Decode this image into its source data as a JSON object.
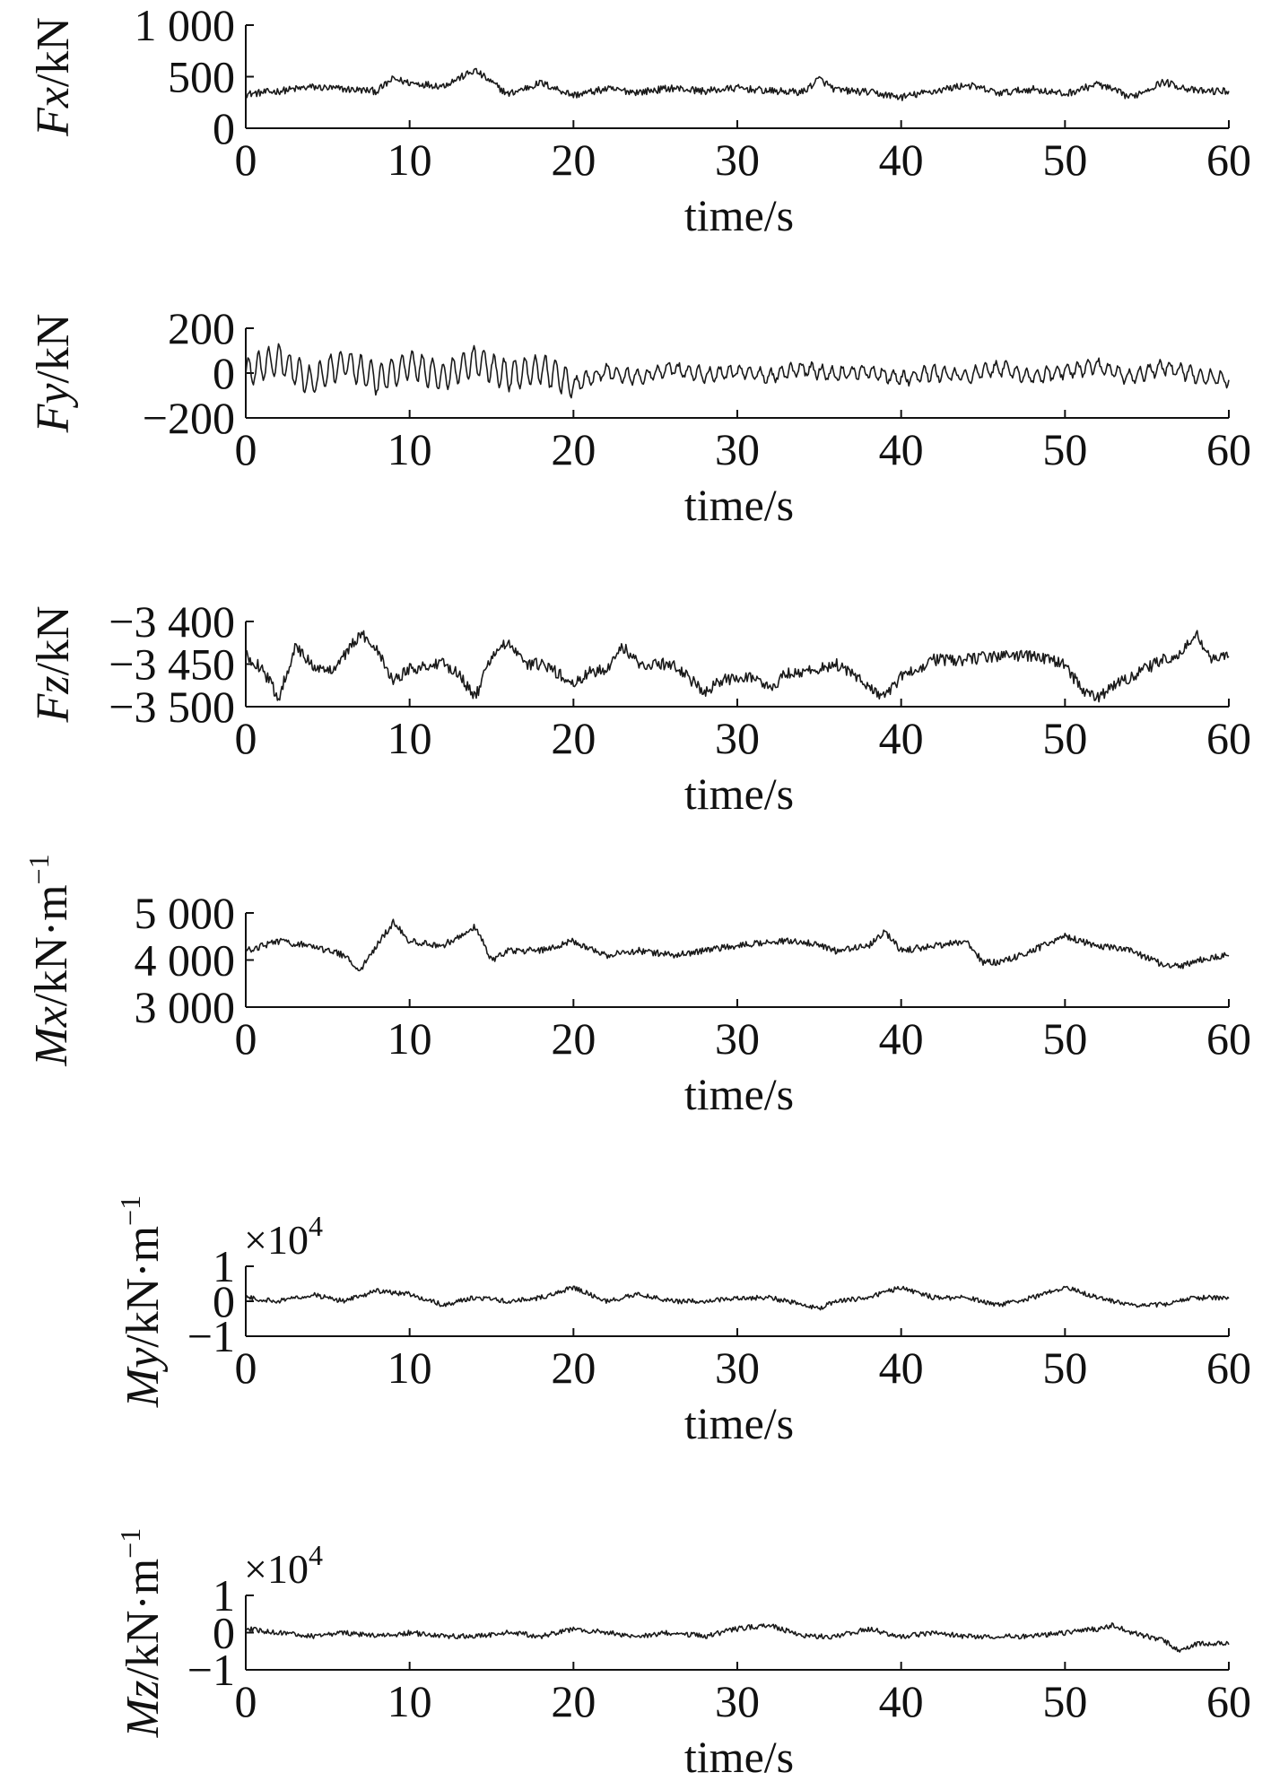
{
  "chart_data": [
    {
      "type": "line",
      "ylabel_var": "Fx",
      "ylabel_unit": "/kN",
      "xlabel": "time/s",
      "xlim": [
        0,
        60
      ],
      "x_ticks": [
        "0",
        "10",
        "20",
        "30",
        "40",
        "50",
        "60"
      ],
      "ylim": [
        0,
        1000
      ],
      "y_ticks": [
        {
          "value": 0,
          "label": "0"
        },
        {
          "value": 500,
          "label": "500"
        },
        {
          "value": 1000,
          "label": "1 000"
        }
      ],
      "multiplier": "",
      "line_color": "#1a1a1a",
      "x": [
        0,
        2,
        4,
        6,
        8,
        9,
        10,
        12,
        14,
        16,
        18,
        20,
        22,
        24,
        26,
        28,
        30,
        32,
        34,
        35,
        36,
        38,
        40,
        42,
        44,
        46,
        48,
        50,
        52,
        54,
        56,
        58,
        60
      ],
      "y": [
        330,
        360,
        400,
        380,
        360,
        480,
        440,
        410,
        560,
        330,
        440,
        320,
        380,
        350,
        390,
        360,
        390,
        360,
        350,
        480,
        370,
        350,
        300,
        360,
        420,
        340,
        380,
        330,
        430,
        300,
        450,
        360,
        360
      ]
    },
    {
      "type": "line",
      "ylabel_var": "Fy",
      "ylabel_unit": "/kN",
      "xlabel": "time/s",
      "xlim": [
        0,
        60
      ],
      "x_ticks": [
        "0",
        "10",
        "20",
        "30",
        "40",
        "50",
        "60"
      ],
      "ylim": [
        -200,
        200
      ],
      "y_ticks": [
        {
          "value": -200,
          "label": "−200"
        },
        {
          "value": 0,
          "label": "0"
        },
        {
          "value": 200,
          "label": "200"
        }
      ],
      "multiplier": "",
      "line_color": "#1a1a1a",
      "x": [
        0,
        2,
        4,
        6,
        8,
        10,
        12,
        14,
        16,
        18,
        20,
        22,
        24,
        26,
        28,
        30,
        32,
        34,
        36,
        38,
        40,
        42,
        44,
        46,
        48,
        50,
        52,
        54,
        56,
        58,
        60
      ],
      "y": [
        0,
        60,
        -40,
        50,
        -30,
        40,
        -20,
        55,
        -10,
        20,
        -50,
        10,
        -20,
        20,
        -10,
        10,
        -15,
        20,
        -5,
        10,
        -25,
        0,
        -15,
        25,
        -20,
        10,
        30,
        -20,
        30,
        -10,
        -30
      ]
    },
    {
      "type": "line",
      "ylabel_var": "Fz",
      "ylabel_unit": "/kN",
      "xlabel": "time/s",
      "xlim": [
        0,
        60
      ],
      "x_ticks": [
        "0",
        "10",
        "20",
        "30",
        "40",
        "50",
        "60"
      ],
      "ylim": [
        -3500,
        -3400
      ],
      "y_ticks": [
        {
          "value": -3500,
          "label": "−3 500"
        },
        {
          "value": -3450,
          "label": "−3 450"
        },
        {
          "value": -3400,
          "label": "−3 400"
        }
      ],
      "multiplier": "",
      "line_color": "#1a1a1a",
      "x": [
        0,
        1,
        2,
        3,
        4,
        5,
        6,
        7,
        8,
        9,
        10,
        12,
        13,
        14,
        15,
        16,
        17,
        18,
        19,
        20,
        21,
        22,
        23,
        24,
        26,
        27,
        28,
        29,
        30,
        31,
        32,
        33,
        34,
        36,
        38,
        39,
        40,
        42,
        44,
        46,
        48,
        50,
        51,
        52,
        53,
        54,
        56,
        57,
        58,
        59,
        60
      ],
      "y": [
        -3440,
        -3455,
        -3490,
        -3430,
        -3450,
        -3460,
        -3440,
        -3415,
        -3430,
        -3470,
        -3455,
        -3450,
        -3460,
        -3490,
        -3440,
        -3425,
        -3450,
        -3450,
        -3460,
        -3475,
        -3460,
        -3455,
        -3430,
        -3450,
        -3450,
        -3465,
        -3485,
        -3470,
        -3465,
        -3465,
        -3480,
        -3460,
        -3460,
        -3450,
        -3475,
        -3490,
        -3465,
        -3445,
        -3445,
        -3440,
        -3440,
        -3450,
        -3480,
        -3490,
        -3475,
        -3465,
        -3445,
        -3440,
        -3415,
        -3445,
        -3440
      ]
    },
    {
      "type": "line",
      "ylabel_var": "Mx",
      "ylabel_unit": "/kN·m",
      "ylabel_sup": "−1",
      "xlabel": "time/s",
      "xlim": [
        0,
        60
      ],
      "x_ticks": [
        "0",
        "10",
        "20",
        "30",
        "40",
        "50",
        "60"
      ],
      "ylim": [
        3000,
        5000
      ],
      "y_ticks": [
        {
          "value": 3000,
          "label": "3 000"
        },
        {
          "value": 4000,
          "label": "4 000"
        },
        {
          "value": 5000,
          "label": "5 000"
        }
      ],
      "multiplier": "",
      "line_color": "#1a1a1a",
      "x": [
        0,
        2,
        4,
        6,
        7,
        8,
        9,
        10,
        12,
        14,
        15,
        16,
        18,
        20,
        22,
        24,
        26,
        28,
        30,
        32,
        34,
        36,
        38,
        39,
        40,
        42,
        44,
        45,
        46,
        48,
        50,
        52,
        54,
        56,
        57,
        58,
        60
      ],
      "y": [
        4200,
        4400,
        4300,
        4100,
        3800,
        4300,
        4800,
        4400,
        4300,
        4700,
        4000,
        4200,
        4200,
        4400,
        4100,
        4200,
        4100,
        4200,
        4300,
        4400,
        4400,
        4200,
        4300,
        4600,
        4200,
        4300,
        4400,
        3950,
        3950,
        4200,
        4500,
        4300,
        4200,
        3900,
        3850,
        4000,
        4100
      ]
    },
    {
      "type": "line",
      "ylabel_var": "My",
      "ylabel_unit": "/kN·m",
      "ylabel_sup": "−1",
      "xlabel": "time/s",
      "xlim": [
        0,
        60
      ],
      "x_ticks": [
        "0",
        "10",
        "20",
        "30",
        "40",
        "50",
        "60"
      ],
      "ylim": [
        -1,
        1
      ],
      "y_ticks": [
        {
          "value": -1,
          "label": "−1"
        },
        {
          "value": 0,
          "label": "0"
        },
        {
          "value": 1,
          "label": "1"
        }
      ],
      "multiplier": "×10",
      "multiplier_exp": "4",
      "line_color": "#1a1a1a",
      "x": [
        0,
        2,
        4,
        6,
        8,
        10,
        12,
        14,
        16,
        18,
        20,
        22,
        24,
        26,
        28,
        30,
        32,
        34,
        35,
        36,
        38,
        40,
        42,
        44,
        46,
        48,
        50,
        52,
        54,
        56,
        58,
        60
      ],
      "y": [
        0.1,
        0.0,
        0.2,
        0.0,
        0.3,
        0.2,
        -0.1,
        0.1,
        0.0,
        0.1,
        0.4,
        0.0,
        0.2,
        0.0,
        0.0,
        0.1,
        0.1,
        -0.1,
        -0.2,
        0.0,
        0.1,
        0.4,
        0.1,
        0.1,
        -0.1,
        0.1,
        0.4,
        0.1,
        -0.1,
        -0.1,
        0.1,
        0.1
      ]
    },
    {
      "type": "line",
      "ylabel_var": "Mz",
      "ylabel_unit": "/kN·m",
      "ylabel_sup": "−1",
      "xlabel": "time/s",
      "xlim": [
        0,
        60
      ],
      "x_ticks": [
        "0",
        "10",
        "20",
        "30",
        "40",
        "50",
        "60"
      ],
      "ylim": [
        -1,
        1
      ],
      "y_ticks": [
        {
          "value": -1,
          "label": "−1"
        },
        {
          "value": 0,
          "label": "0"
        },
        {
          "value": 1,
          "label": "1"
        }
      ],
      "multiplier": "×10",
      "multiplier_exp": "4",
      "line_color": "#1a1a1a",
      "x": [
        0,
        2,
        4,
        6,
        8,
        10,
        12,
        14,
        16,
        18,
        20,
        22,
        24,
        26,
        28,
        30,
        32,
        34,
        36,
        38,
        40,
        42,
        44,
        46,
        48,
        50,
        52,
        53,
        54,
        56,
        57,
        58,
        60
      ],
      "y": [
        0.1,
        0.0,
        -0.1,
        0.0,
        -0.1,
        0.0,
        -0.1,
        -0.1,
        0.0,
        -0.1,
        0.1,
        0.0,
        -0.1,
        0.0,
        -0.1,
        0.1,
        0.2,
        -0.1,
        -0.1,
        0.1,
        -0.1,
        0.0,
        -0.1,
        -0.1,
        -0.1,
        0.0,
        0.1,
        0.2,
        0.0,
        -0.2,
        -0.5,
        -0.3,
        -0.3
      ]
    }
  ]
}
